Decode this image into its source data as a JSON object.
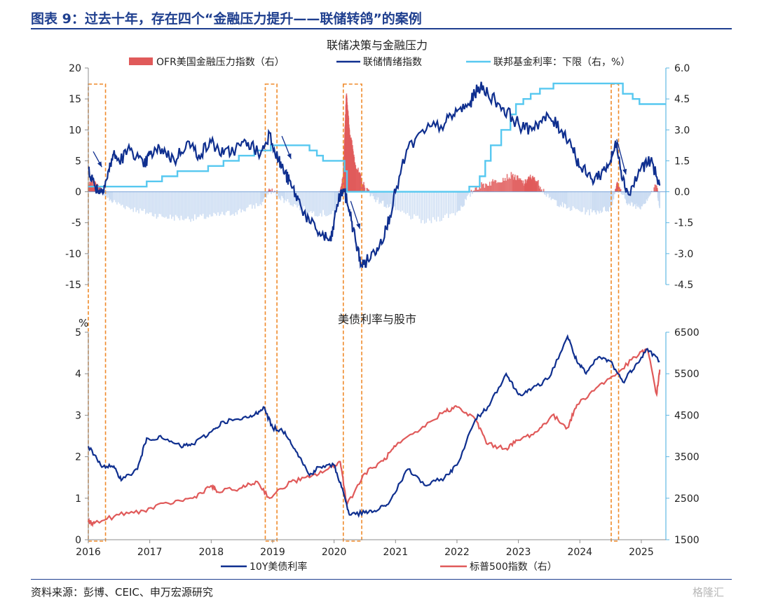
{
  "figure": {
    "title": "图表 9：过去十年，存在四个“金融压力提升——联储转鸽”的案例",
    "source": "资料来源：彭博、CEIC、申万宏源研究",
    "watermark": "格隆汇"
  },
  "colors": {
    "navy": "#0f2f8f",
    "lightblue": "#57c8f0",
    "red": "#e05a5a",
    "fill": "#c9daf2",
    "orange": "#ef8a2a",
    "axis": "#5fb7e3",
    "title": "#1f3f8f"
  },
  "chart_data": [
    {
      "type": "line",
      "title": "联储决策与金融压力",
      "x_ticks": [
        2016,
        2017,
        2018,
        2019,
        2020,
        2021,
        2022,
        2023,
        2024,
        2025
      ],
      "x_range": [
        2016.0,
        2025.4
      ],
      "ylim": [
        -15,
        20
      ],
      "yticks": [
        20,
        15,
        10,
        5,
        0,
        -5,
        -10,
        -15
      ],
      "y2lim": [
        -4.5,
        6.0
      ],
      "y2ticks": [
        "6.0",
        "4.5",
        "3.0",
        "1.5",
        "0.0",
        "-1.5",
        "-3.0",
        "-4.5"
      ],
      "y2tick_values": [
        6.0,
        4.5,
        3.0,
        1.5,
        0.0,
        -1.5,
        -3.0,
        -4.5
      ],
      "legend": [
        "OFR美国金融压力指数（右）",
        "联储情绪指数",
        "联邦基金利率：下限（右，%）"
      ],
      "series": [
        {
          "name": "联储情绪指数",
          "axis": "left",
          "x": [
            2016.0,
            2016.1,
            2016.2,
            2016.3,
            2016.4,
            2016.5,
            2016.7,
            2016.9,
            2017.0,
            2017.2,
            2017.4,
            2017.6,
            2017.8,
            2018.0,
            2018.2,
            2018.4,
            2018.6,
            2018.8,
            2018.95,
            2019.1,
            2019.2,
            2019.3,
            2019.45,
            2019.6,
            2019.8,
            2019.95,
            2020.05,
            2020.15,
            2020.25,
            2020.35,
            2020.45,
            2020.55,
            2020.7,
            2020.85,
            2021.0,
            2021.2,
            2021.5,
            2021.8,
            2022.0,
            2022.2,
            2022.35,
            2022.5,
            2022.7,
            2022.9,
            2023.1,
            2023.3,
            2023.5,
            2023.7,
            2023.85,
            2024.0,
            2024.2,
            2024.35,
            2024.5,
            2024.6,
            2024.7,
            2024.8,
            2025.0,
            2025.15,
            2025.3
          ],
          "values": [
            4,
            1,
            0,
            2,
            6,
            5,
            7,
            4,
            6,
            7,
            5,
            8,
            6,
            8,
            6,
            7,
            8,
            6,
            9.5,
            5,
            3,
            1,
            -2,
            -5,
            -7,
            -8,
            -2,
            0.5,
            -3,
            -8,
            -12,
            -11,
            -9,
            -6,
            0,
            7,
            10,
            11,
            13,
            14,
            17,
            16,
            14,
            12,
            10,
            11,
            12,
            10,
            8,
            4,
            2,
            3,
            5,
            8,
            2,
            -0.5,
            4,
            5,
            1
          ]
        },
        {
          "name": "联邦基金利率：下限（右，%）",
          "axis": "right",
          "step": true,
          "x": [
            2016.0,
            2016.95,
            2017.2,
            2017.45,
            2017.95,
            2018.2,
            2018.45,
            2018.7,
            2018.97,
            2019.6,
            2019.72,
            2019.82,
            2020.17,
            2020.21,
            2022.2,
            2022.37,
            2022.46,
            2022.55,
            2022.72,
            2022.87,
            2022.96,
            2023.08,
            2023.2,
            2023.35,
            2023.57,
            2024.7,
            2024.86,
            2024.97,
            2025.4
          ],
          "values": [
            0.25,
            0.5,
            0.75,
            1.0,
            1.25,
            1.5,
            1.75,
            2.0,
            2.25,
            2.0,
            1.75,
            1.5,
            1.0,
            0.0,
            0.25,
            0.75,
            1.5,
            2.25,
            3.0,
            3.75,
            4.25,
            4.5,
            4.75,
            5.0,
            5.25,
            4.75,
            4.5,
            4.25,
            4.25
          ]
        },
        {
          "name": "OFR美国金融压力指数（右）",
          "axis": "right",
          "type": "area",
          "x": [
            2016.0,
            2016.1,
            2016.2,
            2016.4,
            2016.8,
            2017.2,
            2017.6,
            2018.0,
            2018.4,
            2018.8,
            2018.95,
            2019.2,
            2019.6,
            2020.0,
            2020.15,
            2020.2,
            2020.25,
            2020.35,
            2020.5,
            2020.7,
            2021.0,
            2021.5,
            2022.0,
            2022.3,
            2022.6,
            2022.9,
            2023.1,
            2023.2,
            2023.3,
            2023.5,
            2023.8,
            2024.2,
            2024.5,
            2024.6,
            2024.65,
            2024.8,
            2025.0,
            2025.25,
            2025.3
          ],
          "values": [
            0.3,
            0.4,
            0.1,
            -0.5,
            -0.9,
            -1.2,
            -1.3,
            -1.2,
            -1.0,
            -0.6,
            0.1,
            -0.4,
            -1.0,
            -1.1,
            0.8,
            4.7,
            3.0,
            1.3,
            0.2,
            -0.4,
            -0.9,
            -1.5,
            -1.0,
            0.2,
            0.5,
            0.8,
            0.4,
            0.7,
            0.5,
            -0.3,
            -0.8,
            -1.0,
            -0.8,
            0.4,
            0.1,
            -0.6,
            -0.7,
            0.3,
            -0.8
          ]
        }
      ]
    },
    {
      "type": "line",
      "title": "美债利率与股市",
      "ylabel": "%",
      "x_ticks": [
        2016,
        2017,
        2018,
        2019,
        2020,
        2021,
        2022,
        2023,
        2024,
        2025
      ],
      "x_range": [
        2016.0,
        2025.4
      ],
      "ylim": [
        0,
        5
      ],
      "yticks": [
        5,
        4,
        3,
        2,
        1,
        0
      ],
      "y2lim": [
        1500,
        6500
      ],
      "y2ticks": [
        6500,
        5500,
        4500,
        3500,
        2500,
        1500
      ],
      "legend": [
        "10Y美债利率",
        "标普500指数（右）"
      ],
      "series": [
        {
          "name": "10Y美债利率",
          "axis": "left",
          "x": [
            2016.0,
            2016.2,
            2016.4,
            2016.55,
            2016.8,
            2016.95,
            2017.2,
            2017.5,
            2017.7,
            2018.0,
            2018.2,
            2018.5,
            2018.7,
            2018.85,
            2019.0,
            2019.2,
            2019.4,
            2019.6,
            2019.75,
            2020.0,
            2020.15,
            2020.25,
            2020.5,
            2020.7,
            2020.9,
            2021.2,
            2021.5,
            2021.8,
            2022.0,
            2022.3,
            2022.5,
            2022.8,
            2023.0,
            2023.2,
            2023.5,
            2023.8,
            2023.95,
            2024.1,
            2024.3,
            2024.5,
            2024.7,
            2024.9,
            2025.1,
            2025.3
          ],
          "values": [
            2.25,
            1.8,
            1.75,
            1.45,
            1.7,
            2.45,
            2.45,
            2.25,
            2.3,
            2.6,
            2.85,
            2.9,
            3.0,
            3.2,
            2.7,
            2.6,
            2.1,
            1.55,
            1.75,
            1.8,
            1.15,
            0.6,
            0.65,
            0.7,
            0.9,
            1.7,
            1.3,
            1.5,
            1.8,
            2.9,
            3.2,
            4.0,
            3.5,
            3.6,
            3.9,
            4.9,
            4.3,
            4.0,
            4.4,
            4.3,
            3.8,
            4.2,
            4.6,
            4.3
          ]
        },
        {
          "name": "标普500指数（右）",
          "axis": "right",
          "x": [
            2016.0,
            2016.1,
            2016.5,
            2016.9,
            2017.3,
            2017.7,
            2018.0,
            2018.1,
            2018.5,
            2018.75,
            2018.95,
            2019.3,
            2019.6,
            2019.9,
            2020.1,
            2020.21,
            2020.5,
            2020.8,
            2021.0,
            2021.4,
            2021.8,
            2022.0,
            2022.3,
            2022.5,
            2022.8,
            2023.0,
            2023.3,
            2023.55,
            2023.8,
            2023.95,
            2024.3,
            2024.6,
            2024.9,
            2025.1,
            2025.25,
            2025.3
          ],
          "values": [
            1930,
            1900,
            2100,
            2200,
            2380,
            2500,
            2800,
            2650,
            2750,
            2900,
            2500,
            2900,
            3000,
            3200,
            3380,
            2350,
            3100,
            3400,
            3750,
            4150,
            4600,
            4700,
            4400,
            3800,
            3700,
            3900,
            4100,
            4500,
            4200,
            4750,
            5200,
            5500,
            5900,
            6100,
            5000,
            5600
          ]
        }
      ]
    }
  ],
  "highlight_windows": [
    [
      2016.0,
      2016.28
    ],
    [
      2018.88,
      2019.07
    ],
    [
      2020.15,
      2020.45
    ],
    [
      2024.51,
      2024.63
    ]
  ],
  "arrows": [
    {
      "x1": 2016.08,
      "y1": 6.5,
      "x2": 2016.22,
      "y2": 4.0
    },
    {
      "x1": 2019.15,
      "y1": 9.0,
      "x2": 2019.3,
      "y2": 5.3
    },
    {
      "x1": 2020.27,
      "y1": -1.5,
      "x2": 2020.42,
      "y2": -6.0
    },
    {
      "x1": 2024.6,
      "y1": 8.5,
      "x2": 2024.75,
      "y2": 2.8
    }
  ]
}
